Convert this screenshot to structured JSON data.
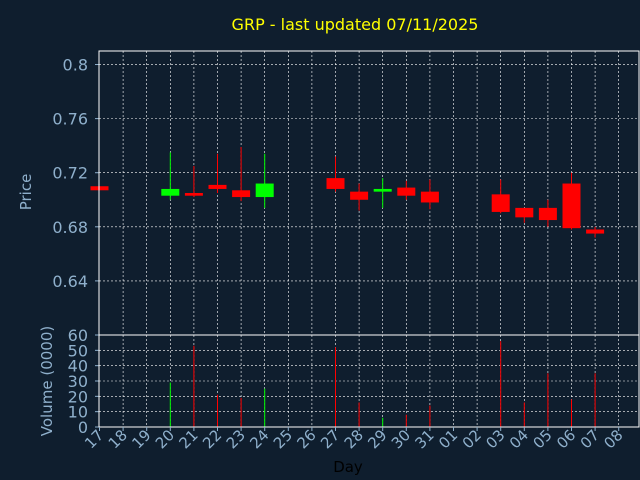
{
  "chart_data": {
    "type": "candlestick",
    "title": "GRP - last updated 07/11/2025",
    "xlabel": "Day",
    "ylabel_price": "Price",
    "ylabel_volume": "Volume (0000)",
    "grid": true,
    "price_ylim": [
      0.6,
      0.81
    ],
    "price_ticks": [
      "0.8",
      "0.76",
      "0.72",
      "0.68",
      "0.64"
    ],
    "volume_ylim": [
      0,
      60
    ],
    "volume_ticks": [
      "60",
      "50",
      "40",
      "30",
      "20",
      "10",
      "0"
    ],
    "x_ticks": [
      "17",
      "18",
      "19",
      "20",
      "21",
      "22",
      "23",
      "24",
      "25",
      "26",
      "27",
      "28",
      "29",
      "30",
      "31",
      "01",
      "02",
      "03",
      "04",
      "05",
      "06",
      "07",
      "08"
    ],
    "candles": [
      {
        "day": "17",
        "open": 0.71,
        "high": 0.71,
        "low": 0.707,
        "close": 0.707,
        "volume": 0
      },
      {
        "day": "20",
        "open": 0.703,
        "high": 0.735,
        "low": 0.7,
        "close": 0.708,
        "volume": 29
      },
      {
        "day": "21",
        "open": 0.705,
        "high": 0.725,
        "low": 0.702,
        "close": 0.703,
        "volume": 53
      },
      {
        "day": "22",
        "open": 0.711,
        "high": 0.734,
        "low": 0.705,
        "close": 0.708,
        "volume": 21
      },
      {
        "day": "23",
        "open": 0.707,
        "high": 0.739,
        "low": 0.699,
        "close": 0.702,
        "volume": 19
      },
      {
        "day": "24",
        "open": 0.702,
        "high": 0.734,
        "low": 0.694,
        "close": 0.712,
        "volume": 25
      },
      {
        "day": "27",
        "open": 0.716,
        "high": 0.732,
        "low": 0.706,
        "close": 0.708,
        "volume": 52
      },
      {
        "day": "28",
        "open": 0.706,
        "high": 0.712,
        "low": 0.692,
        "close": 0.7,
        "volume": 16
      },
      {
        "day": "29",
        "open": 0.706,
        "high": 0.716,
        "low": 0.694,
        "close": 0.708,
        "volume": 6
      },
      {
        "day": "30",
        "open": 0.709,
        "high": 0.714,
        "low": 0.7,
        "close": 0.703,
        "volume": 8
      },
      {
        "day": "31",
        "open": 0.706,
        "high": 0.715,
        "low": 0.693,
        "close": 0.698,
        "volume": 14
      },
      {
        "day": "03",
        "open": 0.704,
        "high": 0.715,
        "low": 0.69,
        "close": 0.691,
        "volume": 56
      },
      {
        "day": "04",
        "open": 0.694,
        "high": 0.694,
        "low": 0.683,
        "close": 0.687,
        "volume": 16
      },
      {
        "day": "05",
        "open": 0.694,
        "high": 0.7,
        "low": 0.68,
        "close": 0.685,
        "volume": 35
      },
      {
        "day": "06",
        "open": 0.712,
        "high": 0.72,
        "low": 0.678,
        "close": 0.679,
        "volume": 18
      },
      {
        "day": "07",
        "open": 0.678,
        "high": 0.68,
        "low": 0.672,
        "close": 0.675,
        "volume": 35
      }
    ],
    "colors": {
      "background": "#0f1e2e",
      "up": "#00ff00",
      "down": "#ff0000",
      "axis_text": "#8fb0cc",
      "title": "#ffff00",
      "frame": "#ffffff",
      "grid": "#ffffff",
      "x_label": "#000000"
    }
  }
}
